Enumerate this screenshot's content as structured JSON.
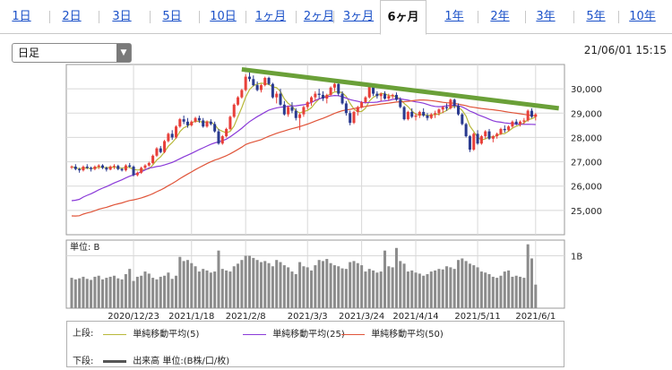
{
  "tabs": [
    {
      "label": "1日",
      "active": false
    },
    {
      "label": "2日",
      "active": false
    },
    {
      "label": "3日",
      "active": false
    },
    {
      "label": "5日",
      "active": false
    },
    {
      "label": "10日",
      "active": false
    },
    {
      "label": "1ヶ月",
      "active": false
    },
    {
      "label": "2ヶ月",
      "active": false
    },
    {
      "label": "3ヶ月",
      "active": false
    },
    {
      "label": "6ヶ月",
      "active": true
    },
    {
      "label": "1年",
      "active": false
    },
    {
      "label": "2年",
      "active": false
    },
    {
      "label": "3年",
      "active": false
    },
    {
      "label": "5年",
      "active": false
    },
    {
      "label": "10年",
      "active": false
    }
  ],
  "period_select": {
    "value": "日足"
  },
  "timestamp": "21/06/01 15:15",
  "colors": {
    "up": "#e8403a",
    "down": "#2a3a8f",
    "ma5": "#b8b83a",
    "ma25": "#8a3ad8",
    "ma50": "#e0553a",
    "trend": "#6aa038",
    "volume": "#8c8c8c",
    "tab_link": "#1a50c8"
  },
  "chart_data": {
    "type": "candlestick",
    "price_axis": {
      "ticks": [
        25000,
        26000,
        27000,
        28000,
        29000,
        30000
      ],
      "tick_labels": [
        "25,000",
        "26,000",
        "27,000",
        "28,000",
        "29,000",
        "30,000"
      ],
      "range": [
        24000,
        31000
      ]
    },
    "x_tick_labels": [
      "2020/12/23",
      "2021/1/18",
      "2021/2/8",
      "2021/3/3",
      "2021/3/24",
      "2021/4/14",
      "2021/5/11",
      "2021/6/1"
    ],
    "x_tick_index": [
      16,
      31,
      45,
      61,
      75,
      89,
      105,
      120
    ],
    "candles": [
      [
        26790,
        26850,
        26700,
        26800
      ],
      [
        26800,
        26900,
        26650,
        26700
      ],
      [
        26700,
        26750,
        26550,
        26650
      ],
      [
        26650,
        26850,
        26600,
        26800
      ],
      [
        26800,
        26900,
        26700,
        26750
      ],
      [
        26750,
        26800,
        26600,
        26700
      ],
      [
        26700,
        26850,
        26650,
        26800
      ],
      [
        26800,
        26900,
        26700,
        26850
      ],
      [
        26850,
        26900,
        26700,
        26750
      ],
      [
        26750,
        26800,
        26600,
        26680
      ],
      [
        26680,
        26850,
        26650,
        26800
      ],
      [
        26800,
        26900,
        26700,
        26830
      ],
      [
        26830,
        26880,
        26650,
        26700
      ],
      [
        26700,
        26750,
        26600,
        26650
      ],
      [
        26650,
        26900,
        26600,
        26850
      ],
      [
        26850,
        26950,
        26750,
        26800
      ],
      [
        26800,
        26850,
        26400,
        26450
      ],
      [
        26450,
        26600,
        26400,
        26550
      ],
      [
        26550,
        26800,
        26500,
        26750
      ],
      [
        26750,
        26900,
        26700,
        26850
      ],
      [
        26850,
        27000,
        26800,
        26950
      ],
      [
        26950,
        27300,
        26900,
        27250
      ],
      [
        27250,
        27600,
        27200,
        27550
      ],
      [
        27550,
        27650,
        27350,
        27400
      ],
      [
        27400,
        27900,
        27350,
        27850
      ],
      [
        27850,
        28200,
        27800,
        28150
      ],
      [
        28150,
        28300,
        27900,
        28000
      ],
      [
        28000,
        28500,
        27950,
        28450
      ],
      [
        28450,
        28800,
        28400,
        28750
      ],
      [
        28750,
        28900,
        28550,
        28650
      ],
      [
        28650,
        28800,
        28400,
        28500
      ],
      [
        28500,
        28700,
        28450,
        28650
      ],
      [
        28650,
        28850,
        28600,
        28800
      ],
      [
        28800,
        28900,
        28600,
        28700
      ],
      [
        28700,
        28800,
        28400,
        28450
      ],
      [
        28450,
        28700,
        28400,
        28650
      ],
      [
        28650,
        28750,
        28500,
        28550
      ],
      [
        28550,
        28650,
        28200,
        28250
      ],
      [
        28250,
        28350,
        27700,
        27750
      ],
      [
        27750,
        28100,
        27700,
        28050
      ],
      [
        28050,
        28400,
        28000,
        28350
      ],
      [
        28350,
        28900,
        28300,
        28850
      ],
      [
        28850,
        29400,
        28800,
        29350
      ],
      [
        29350,
        29700,
        29300,
        29650
      ],
      [
        29650,
        30000,
        29600,
        29950
      ],
      [
        29950,
        30600,
        29900,
        30500
      ],
      [
        30500,
        30700,
        30300,
        30400
      ],
      [
        30400,
        30550,
        30100,
        30150
      ],
      [
        30150,
        30300,
        29900,
        29950
      ],
      [
        29950,
        30200,
        29850,
        30150
      ],
      [
        30150,
        30500,
        30100,
        30450
      ],
      [
        30450,
        30500,
        30150,
        30200
      ],
      [
        30200,
        30250,
        29600,
        29650
      ],
      [
        29650,
        29900,
        29400,
        29800
      ],
      [
        29800,
        30000,
        29300,
        29350
      ],
      [
        29350,
        29500,
        28900,
        28950
      ],
      [
        28950,
        29300,
        28850,
        29250
      ],
      [
        29250,
        29450,
        29000,
        29100
      ],
      [
        29100,
        29200,
        28700,
        28800
      ],
      [
        28800,
        29000,
        28300,
        28950
      ],
      [
        28950,
        29300,
        28850,
        29250
      ],
      [
        29250,
        29500,
        29150,
        29450
      ],
      [
        29450,
        29700,
        29300,
        29650
      ],
      [
        29650,
        29900,
        29500,
        29800
      ],
      [
        29800,
        30000,
        29600,
        29750
      ],
      [
        29750,
        29900,
        29500,
        29600
      ],
      [
        29600,
        29800,
        29400,
        29750
      ],
      [
        29750,
        30100,
        29700,
        30050
      ],
      [
        30050,
        30400,
        29900,
        30200
      ],
      [
        30200,
        30300,
        29700,
        29800
      ],
      [
        29800,
        29900,
        29350,
        29400
      ],
      [
        29400,
        29500,
        28900,
        29000
      ],
      [
        29000,
        29100,
        28500,
        28600
      ],
      [
        28600,
        29100,
        28550,
        29050
      ],
      [
        29050,
        29300,
        28900,
        29250
      ],
      [
        29250,
        29500,
        29200,
        29450
      ],
      [
        29450,
        29700,
        29400,
        29650
      ],
      [
        29650,
        30200,
        29600,
        30100
      ],
      [
        30100,
        30200,
        29700,
        29800
      ],
      [
        29800,
        29900,
        29600,
        29700
      ],
      [
        29700,
        29850,
        29500,
        29800
      ],
      [
        29800,
        29900,
        29550,
        29600
      ],
      [
        29600,
        29800,
        29500,
        29700
      ],
      [
        29700,
        29800,
        29600,
        29750
      ],
      [
        29750,
        29850,
        29500,
        29550
      ],
      [
        29550,
        29650,
        29200,
        29250
      ],
      [
        29250,
        29300,
        28700,
        28750
      ],
      [
        28750,
        29100,
        28700,
        29050
      ],
      [
        29050,
        29200,
        28800,
        28850
      ],
      [
        28850,
        29000,
        28700,
        28900
      ],
      [
        28900,
        29100,
        28800,
        29050
      ],
      [
        29050,
        29200,
        28850,
        28900
      ],
      [
        28900,
        29000,
        28700,
        28800
      ],
      [
        28800,
        29000,
        28750,
        28950
      ],
      [
        28950,
        29100,
        28800,
        29000
      ],
      [
        29000,
        29200,
        28900,
        29150
      ],
      [
        29150,
        29300,
        29000,
        29250
      ],
      [
        29250,
        29400,
        29100,
        29200
      ],
      [
        29200,
        29600,
        29150,
        29550
      ],
      [
        29550,
        29600,
        29200,
        29300
      ],
      [
        29300,
        29400,
        28900,
        28950
      ],
      [
        28950,
        29000,
        28500,
        28550
      ],
      [
        28550,
        28600,
        28000,
        28050
      ],
      [
        28050,
        28100,
        27400,
        27500
      ],
      [
        27500,
        28200,
        27450,
        28150
      ],
      [
        28150,
        28300,
        27700,
        27750
      ],
      [
        27750,
        28100,
        27700,
        28050
      ],
      [
        28050,
        28300,
        27950,
        28250
      ],
      [
        28250,
        28350,
        27900,
        27950
      ],
      [
        27950,
        28100,
        27800,
        28050
      ],
      [
        28050,
        28200,
        27950,
        28150
      ],
      [
        28150,
        28400,
        28100,
        28350
      ],
      [
        28350,
        28500,
        28200,
        28300
      ],
      [
        28300,
        28500,
        28250,
        28450
      ],
      [
        28450,
        28700,
        28400,
        28650
      ],
      [
        28650,
        28750,
        28500,
        28550
      ],
      [
        28550,
        28700,
        28450,
        28650
      ],
      [
        28650,
        28800,
        28550,
        28700
      ],
      [
        28700,
        29150,
        28650,
        29100
      ],
      [
        29100,
        29200,
        28800,
        28850
      ],
      [
        28850,
        29000,
        28700,
        28950
      ]
    ],
    "volume_axis": {
      "label": "単位: B",
      "ticks": [
        1
      ],
      "tick_labels": [
        "1B"
      ],
      "range": [
        0,
        1.3
      ]
    },
    "volume": [
      0.58,
      0.55,
      0.57,
      0.6,
      0.56,
      0.54,
      0.6,
      0.62,
      0.55,
      0.58,
      0.6,
      0.62,
      0.57,
      0.55,
      0.65,
      0.75,
      0.52,
      0.6,
      0.62,
      0.7,
      0.66,
      0.58,
      0.55,
      0.6,
      0.62,
      0.68,
      0.56,
      0.62,
      0.98,
      0.9,
      0.92,
      0.86,
      0.8,
      0.7,
      0.75,
      0.72,
      0.68,
      0.7,
      1.1,
      0.75,
      0.72,
      0.7,
      0.8,
      0.85,
      0.92,
      1.0,
      1.0,
      0.96,
      0.92,
      0.88,
      0.9,
      0.86,
      0.8,
      0.92,
      0.88,
      0.82,
      0.78,
      0.7,
      0.65,
      0.88,
      0.8,
      0.78,
      0.72,
      0.82,
      0.92,
      0.9,
      0.94,
      0.86,
      0.82,
      0.8,
      0.76,
      0.75,
      0.88,
      0.9,
      0.86,
      0.82,
      0.7,
      0.75,
      0.72,
      0.68,
      0.7,
      1.1,
      0.8,
      0.78,
      1.15,
      0.9,
      0.85,
      0.7,
      0.72,
      0.68,
      0.66,
      0.62,
      0.65,
      0.7,
      0.72,
      0.75,
      0.74,
      0.8,
      0.78,
      0.75,
      0.92,
      0.95,
      0.9,
      0.85,
      0.82,
      0.78,
      0.7,
      0.68,
      0.65,
      0.6,
      0.58,
      0.62,
      0.7,
      0.72,
      0.6,
      0.62,
      0.6,
      0.58,
      1.22,
      0.95,
      0.45
    ],
    "trendline": {
      "from": {
        "index": 44,
        "value": 30800
      },
      "to": {
        "index": 126,
        "value": 29200
      }
    },
    "legend": {
      "upper_label": "上段:",
      "lower_label": "下段:",
      "series": [
        {
          "name": "単純移動平均(5)",
          "color": "#b8b83a"
        },
        {
          "name": "単純移動平均(25)",
          "color": "#8a3ad8"
        },
        {
          "name": "単純移動平均(50)",
          "color": "#e0553a"
        }
      ],
      "volume_entry": "出来高 単位:(B株/口/枚)"
    }
  }
}
